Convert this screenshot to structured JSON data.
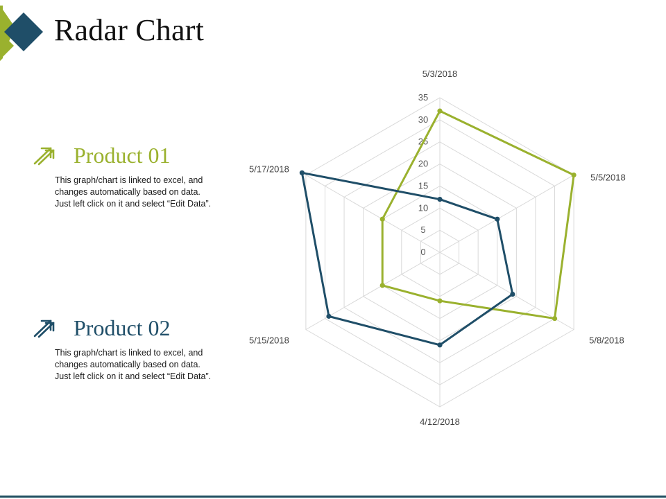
{
  "page": {
    "title": "Radar Chart",
    "colors": {
      "product1": "#9ab12e",
      "product2": "#1f4e68",
      "grid": "#d9d9d9",
      "logo_green": "#9ab12e",
      "logo_blue": "#1f4e68"
    }
  },
  "legend": [
    {
      "name": "Product 01",
      "icon": "double-arrow-up-right-icon",
      "color": "#9ab12e",
      "description": [
        "This graph/chart is linked to excel, and",
        "changes automatically based on data.",
        "Just left click on it and select “Edit Data”."
      ]
    },
    {
      "name": "Product 02",
      "icon": "double-arrow-up-right-icon",
      "color": "#1f4e68",
      "description": [
        "This graph/chart is linked to excel, and",
        "changes automatically based on data.",
        "Just left click on it and select “Edit Data”."
      ]
    }
  ],
  "chart_data": {
    "type": "radar",
    "categories": [
      "5/3/2018",
      "5/5/2018",
      "5/8/2018",
      "4/12/2018",
      "5/15/2018",
      "5/17/2018"
    ],
    "rlim": [
      0,
      35
    ],
    "ticks": [
      0,
      5,
      10,
      15,
      20,
      25,
      30,
      35
    ],
    "grid": true,
    "series": [
      {
        "name": "Product 01",
        "color": "#9ab12e",
        "values": [
          32,
          35,
          30,
          11,
          15,
          15
        ]
      },
      {
        "name": "Product 02",
        "color": "#1f4e68",
        "values": [
          12,
          15,
          19,
          21,
          29,
          36
        ]
      }
    ]
  }
}
